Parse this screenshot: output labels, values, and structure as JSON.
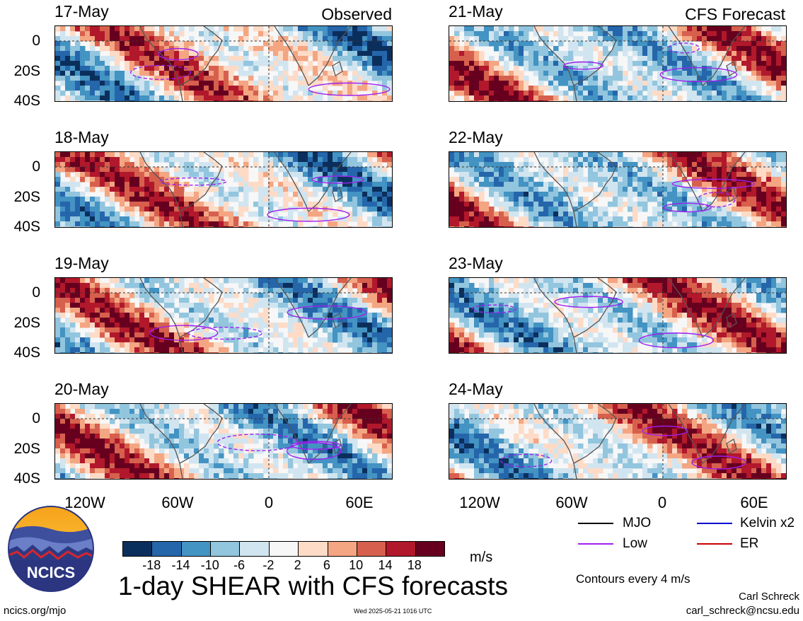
{
  "header": {
    "left_label": "Observed",
    "right_label": "CFS Forecast"
  },
  "panels": {
    "observed": [
      {
        "date": "17-May"
      },
      {
        "date": "18-May"
      },
      {
        "date": "19-May"
      },
      {
        "date": "20-May"
      }
    ],
    "forecast": [
      {
        "date": "21-May"
      },
      {
        "date": "22-May"
      },
      {
        "date": "23-May"
      },
      {
        "date": "24-May"
      }
    ]
  },
  "axes": {
    "y_ticks": [
      "0",
      "20S",
      "40S"
    ],
    "x_ticks": [
      "120W",
      "60W",
      "0",
      "60E"
    ]
  },
  "colorbar": {
    "labels": [
      "-18",
      "-14",
      "-10",
      "-6",
      "-2",
      "2",
      "6",
      "10",
      "14",
      "18"
    ],
    "colors": [
      "#0b2f5c",
      "#2566ab",
      "#4393c3",
      "#92c5de",
      "#d1e5f0",
      "#f7f7f7",
      "#fddbc7",
      "#f4a582",
      "#d6604d",
      "#b2182b",
      "#67001f"
    ],
    "units": "m/s"
  },
  "legend": {
    "items": [
      {
        "label": "MJO",
        "color": "#000000"
      },
      {
        "label": "Kelvin x2",
        "color": "#0000cc"
      },
      {
        "label": "Low",
        "color": "#a020f0"
      },
      {
        "label": "ER",
        "color": "#cc0000"
      }
    ],
    "note": "Contours every 4 m/s"
  },
  "title": "1-day SHEAR with CFS forecasts",
  "logo_text": "NCICS",
  "footer": {
    "url": "ncics.org/mjo",
    "timestamp": "Wed 2025-05-21 1016 UTC",
    "author": "Carl Schreck",
    "email": "carl_schreck@ncsu.edu"
  },
  "chart_data": [
    {
      "type": "heatmap",
      "title": "17-May",
      "xlim": [
        "150W",
        "80E"
      ],
      "ylim": [
        "40S",
        "10N"
      ],
      "units": "m/s"
    },
    {
      "type": "heatmap",
      "title": "18-May",
      "xlim": [
        "150W",
        "80E"
      ],
      "ylim": [
        "40S",
        "10N"
      ],
      "units": "m/s"
    },
    {
      "type": "heatmap",
      "title": "19-May",
      "xlim": [
        "150W",
        "80E"
      ],
      "ylim": [
        "40S",
        "10N"
      ],
      "units": "m/s"
    },
    {
      "type": "heatmap",
      "title": "20-May",
      "xlim": [
        "150W",
        "80E"
      ],
      "ylim": [
        "40S",
        "10N"
      ],
      "units": "m/s"
    },
    {
      "type": "heatmap",
      "title": "21-May",
      "xlim": [
        "150W",
        "80E"
      ],
      "ylim": [
        "40S",
        "10N"
      ],
      "units": "m/s"
    },
    {
      "type": "heatmap",
      "title": "22-May",
      "xlim": [
        "150W",
        "80E"
      ],
      "ylim": [
        "40S",
        "10N"
      ],
      "units": "m/s"
    },
    {
      "type": "heatmap",
      "title": "23-May",
      "xlim": [
        "150W",
        "80E"
      ],
      "ylim": [
        "40S",
        "10N"
      ],
      "units": "m/s"
    },
    {
      "type": "heatmap",
      "title": "24-May",
      "xlim": [
        "150W",
        "80E"
      ],
      "ylim": [
        "40S",
        "10N"
      ],
      "units": "m/s"
    }
  ]
}
